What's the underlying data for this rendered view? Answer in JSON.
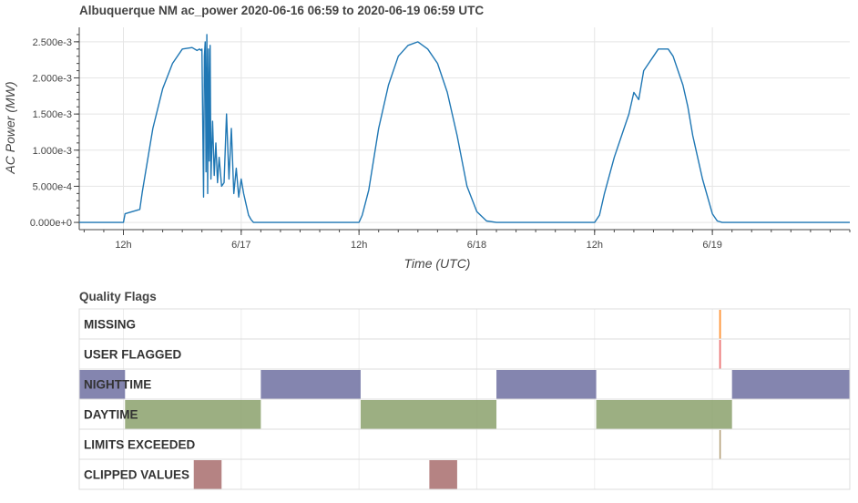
{
  "chart_data": [
    {
      "type": "line",
      "title": "Albuquerque NM ac_power 2020-06-16 06:59 to 2020-06-19 06:59 UTC",
      "xlabel": "Time (UTC)",
      "ylabel": "AC Power (MW)",
      "x_range": [
        "2020-06-16 07:30",
        "2020-06-19 14:00"
      ],
      "ylim": [
        -0.0001,
        0.0027
      ],
      "y_ticks": [
        "0.000e+0",
        "5.000e-4",
        "1.000e-3",
        "1.500e-3",
        "2.000e-3",
        "2.500e-3"
      ],
      "y_tick_values": [
        0,
        0.0005,
        0.001,
        0.0015,
        0.002,
        0.0025
      ],
      "x_ticks": [
        "12h",
        "6/17",
        "12h",
        "6/18",
        "12h",
        "6/19"
      ],
      "x_tick_values": [
        "2020-06-16 12:00",
        "2020-06-17 00:00",
        "2020-06-17 12:00",
        "2020-06-18 00:00",
        "2020-06-18 12:00",
        "2020-06-19 00:00"
      ],
      "grid": true,
      "series": [
        {
          "color": "#1f77b4",
          "x": [
            "2020-06-16 07:30",
            "2020-06-16 12:00",
            "2020-06-16 12:10",
            "2020-06-16 13:40",
            "2020-06-16 13:55",
            "2020-06-16 15:00",
            "2020-06-16 16:00",
            "2020-06-16 17:00",
            "2020-06-16 18:00",
            "2020-06-16 19:00",
            "2020-06-16 19:30",
            "2020-06-16 19:45",
            "2020-06-16 19:55",
            "2020-06-16 20:00",
            "2020-06-16 20:10",
            "2020-06-16 20:15",
            "2020-06-16 20:20",
            "2020-06-16 20:25",
            "2020-06-16 20:30",
            "2020-06-16 20:35",
            "2020-06-16 20:40",
            "2020-06-16 20:45",
            "2020-06-16 20:50",
            "2020-06-16 20:55",
            "2020-06-16 21:05",
            "2020-06-16 21:15",
            "2020-06-16 21:25",
            "2020-06-16 21:35",
            "2020-06-16 21:45",
            "2020-06-16 22:00",
            "2020-06-16 22:15",
            "2020-06-16 22:30",
            "2020-06-16 22:45",
            "2020-06-16 23:00",
            "2020-06-16 23:15",
            "2020-06-16 23:30",
            "2020-06-16 23:45",
            "2020-06-17 00:00",
            "2020-06-17 00:15",
            "2020-06-17 00:30",
            "2020-06-17 00:45",
            "2020-06-17 01:00",
            "2020-06-17 01:15",
            "2020-06-17 01:40",
            "2020-06-17 02:30",
            "2020-06-17 12:00",
            "2020-06-17 12:20",
            "2020-06-17 13:00",
            "2020-06-17 14:00",
            "2020-06-17 15:00",
            "2020-06-17 16:00",
            "2020-06-17 17:00",
            "2020-06-17 18:00",
            "2020-06-17 19:00",
            "2020-06-17 20:00",
            "2020-06-17 21:00",
            "2020-06-17 22:00",
            "2020-06-17 23:00",
            "2020-06-18 00:00",
            "2020-06-18 01:00",
            "2020-06-18 02:00",
            "2020-06-18 12:00",
            "2020-06-18 12:30",
            "2020-06-18 13:00",
            "2020-06-18 14:00",
            "2020-06-18 15:00",
            "2020-06-18 15:30",
            "2020-06-18 16:00",
            "2020-06-18 16:30",
            "2020-06-18 17:00",
            "2020-06-18 17:30",
            "2020-06-18 18:00",
            "2020-06-18 18:30",
            "2020-06-18 19:00",
            "2020-06-18 19:30",
            "2020-06-18 20:00",
            "2020-06-18 20:30",
            "2020-06-18 21:00",
            "2020-06-18 21:30",
            "2020-06-18 22:00",
            "2020-06-18 23:00",
            "2020-06-19 00:00",
            "2020-06-19 00:30",
            "2020-06-19 01:00",
            "2020-06-19 01:30",
            "2020-06-19 14:00"
          ],
          "y": [
            0,
            0,
            0.00012,
            0.00018,
            0.00042,
            0.0013,
            0.00185,
            0.0022,
            0.0024,
            0.00242,
            0.00238,
            0.0024,
            0.00238,
            0.0024,
            0.00035,
            0.0023,
            0.0025,
            0.0007,
            0.0026,
            0.0004,
            0.0024,
            0.00085,
            0.00245,
            0.0006,
            0.0014,
            0.00065,
            0.0011,
            0.00055,
            0.0009,
            0.0005,
            0.00055,
            0.0015,
            0.0006,
            0.0013,
            0.0004,
            0.00075,
            0.00035,
            0.0006,
            0.0004,
            0.00025,
            0.0001,
            4e-05,
            0,
            0,
            0,
            0,
            0.0001,
            0.00045,
            0.0013,
            0.0019,
            0.0023,
            0.00245,
            0.0025,
            0.0024,
            0.0022,
            0.0018,
            0.0012,
            0.0005,
            0.00015,
            2e-05,
            0,
            0,
            0.0001,
            0.0004,
            0.0009,
            0.0013,
            0.0015,
            0.0018,
            0.0017,
            0.0021,
            0.0022,
            0.0023,
            0.0024,
            0.0024,
            0.0024,
            0.0023,
            0.0021,
            0.0019,
            0.0016,
            0.0012,
            0.0006,
            0.00012,
            2e-05,
            0,
            0,
            0
          ]
        }
      ]
    },
    {
      "type": "timeline",
      "title": "Quality Flags",
      "rows": [
        {
          "label": "MISSING",
          "color": "#ff7f0e",
          "intervals": [
            [
              "2020-06-19 00:42",
              "2020-06-19 00:52"
            ]
          ]
        },
        {
          "label": "USER FLAGGED",
          "color": "#e75b5b",
          "intervals": [
            [
              "2020-06-19 00:42",
              "2020-06-19 00:52"
            ]
          ]
        },
        {
          "label": "NIGHTTIME",
          "color": "#6f70a1",
          "intervals": [
            [
              "2020-06-16 07:30",
              "2020-06-16 12:10"
            ],
            [
              "2020-06-17 02:00",
              "2020-06-17 12:10"
            ],
            [
              "2020-06-18 02:00",
              "2020-06-18 12:10"
            ],
            [
              "2020-06-19 02:00",
              "2020-06-19 14:00"
            ]
          ]
        },
        {
          "label": "DAYTIME",
          "color": "#8ba16c",
          "intervals": [
            [
              "2020-06-16 12:10",
              "2020-06-17 02:00"
            ],
            [
              "2020-06-17 12:10",
              "2020-06-18 02:00"
            ],
            [
              "2020-06-18 12:10",
              "2020-06-19 02:00"
            ]
          ]
        },
        {
          "label": "LIMITS EXCEEDED",
          "color": "#a38b5a",
          "intervals": [
            [
              "2020-06-19 00:43",
              "2020-06-19 00:50"
            ]
          ]
        },
        {
          "label": "CLIPPED VALUES",
          "color": "#a86d6d",
          "intervals": [
            [
              "2020-06-16 19:10",
              "2020-06-16 22:00"
            ],
            [
              "2020-06-17 19:10",
              "2020-06-17 22:00"
            ]
          ]
        }
      ]
    }
  ]
}
